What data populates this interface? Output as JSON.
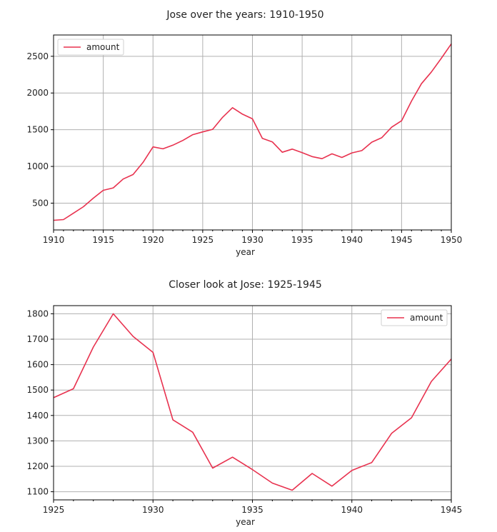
{
  "colors": {
    "line": "#e8324f",
    "grid": "#b0b0b0",
    "axis": "#000000"
  },
  "chart_data": [
    {
      "type": "line",
      "title": "Jose over the years: 1910-1950",
      "xlabel": "year",
      "ylabel": "",
      "xlim": [
        1910,
        1950
      ],
      "ylim": [
        135,
        2790
      ],
      "xticks": [
        1910,
        1915,
        1920,
        1925,
        1930,
        1935,
        1940,
        1945,
        1950
      ],
      "yticks": [
        500,
        1000,
        1500,
        2000,
        2500
      ],
      "grid": true,
      "legend": {
        "position": "top-left",
        "entries": [
          "amount"
        ]
      },
      "series": [
        {
          "name": "amount",
          "x": [
            1910,
            1911,
            1912,
            1913,
            1914,
            1915,
            1916,
            1917,
            1918,
            1919,
            1920,
            1921,
            1922,
            1923,
            1924,
            1925,
            1926,
            1927,
            1928,
            1929,
            1930,
            1931,
            1932,
            1933,
            1934,
            1935,
            1936,
            1937,
            1938,
            1939,
            1940,
            1941,
            1942,
            1943,
            1944,
            1945,
            1946,
            1947,
            1948,
            1949,
            1950
          ],
          "y": [
            266,
            276,
            363,
            451,
            568,
            675,
            708,
            828,
            890,
            1055,
            1266,
            1240,
            1289,
            1354,
            1432,
            1470,
            1505,
            1669,
            1800,
            1711,
            1648,
            1383,
            1334,
            1193,
            1236,
            1187,
            1134,
            1106,
            1172,
            1122,
            1184,
            1215,
            1330,
            1391,
            1534,
            1622,
            1890,
            2127,
            2286,
            2474,
            2669
          ]
        }
      ]
    },
    {
      "type": "line",
      "title": "Closer look at Jose: 1925-1945",
      "xlabel": "year",
      "ylabel": "",
      "xlim": [
        1925,
        1945
      ],
      "ylim": [
        1068,
        1832
      ],
      "xticks": [
        1925,
        1930,
        1935,
        1940,
        1945
      ],
      "yticks": [
        1100,
        1200,
        1300,
        1400,
        1500,
        1600,
        1700,
        1800
      ],
      "grid": true,
      "legend": {
        "position": "top-right",
        "entries": [
          "amount"
        ]
      },
      "series": [
        {
          "name": "amount",
          "x": [
            1925,
            1926,
            1927,
            1928,
            1929,
            1930,
            1931,
            1932,
            1933,
            1934,
            1935,
            1936,
            1937,
            1938,
            1939,
            1940,
            1941,
            1942,
            1943,
            1944,
            1945
          ],
          "y": [
            1470,
            1505,
            1669,
            1800,
            1711,
            1648,
            1383,
            1334,
            1193,
            1236,
            1187,
            1134,
            1106,
            1172,
            1122,
            1184,
            1215,
            1330,
            1391,
            1534,
            1622
          ]
        }
      ]
    }
  ]
}
